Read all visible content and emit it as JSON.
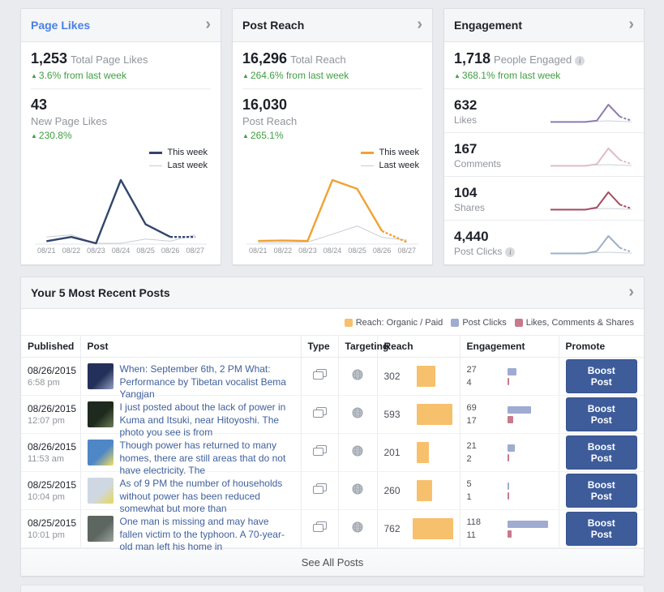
{
  "icons": {
    "chevron": "›",
    "up_arrow": "▲",
    "info": "i"
  },
  "cards": {
    "page_likes": {
      "title": "Page Likes",
      "stats": [
        {
          "value": "1,253",
          "label": "Total Page Likes",
          "delta": "3.6% from last week"
        },
        {
          "value": "43",
          "label": "New Page Likes",
          "delta": "230.8%"
        }
      ],
      "chart": {
        "type": "line",
        "x": [
          "08/21",
          "08/22",
          "08/23",
          "08/24",
          "08/25",
          "08/26",
          "08/27"
        ],
        "series": [
          {
            "name": "This week",
            "color": "#32456b",
            "values": [
              1,
              3,
              0,
              30,
              9,
              3,
              3
            ]
          },
          {
            "name": "Last week",
            "color": "#c7cdd6",
            "values": [
              3,
              4,
              0,
              0,
              2,
              1,
              4
            ]
          }
        ]
      }
    },
    "post_reach": {
      "title": "Post Reach",
      "stats": [
        {
          "value": "16,296",
          "label": "Total Reach",
          "delta": "264.6% from last week"
        },
        {
          "value": "16,030",
          "label": "Post Reach",
          "delta": "265.1%"
        }
      ],
      "chart": {
        "type": "line",
        "x": [
          "08/21",
          "08/22",
          "08/23",
          "08/24",
          "08/25",
          "08/26",
          "08/27"
        ],
        "series": [
          {
            "name": "This week",
            "color": "#f0a232",
            "values": [
              600,
              700,
              600,
              16030,
              13800,
              3100,
              300
            ]
          },
          {
            "name": "Last week",
            "color": "#c7cdd6",
            "values": [
              150,
              150,
              300,
              2300,
              4400,
              1500,
              800
            ]
          }
        ]
      }
    },
    "engagement": {
      "title": "Engagement",
      "stat": {
        "value": "1,718",
        "label": "People Engaged",
        "delta": "368.1% from last week"
      },
      "spark_last_week": [
        3,
        3,
        4,
        5,
        7,
        9,
        6,
        4
      ],
      "metrics": [
        {
          "value": "632",
          "label": "Likes",
          "color": "#8f7ab3",
          "spark": [
            3,
            3,
            3,
            3,
            10,
            100,
            32,
            10
          ],
          "info": false
        },
        {
          "value": "167",
          "label": "Comments",
          "color": "#debdc8",
          "spark": [
            2,
            2,
            2,
            2,
            12,
            100,
            35,
            12
          ],
          "info": false
        },
        {
          "value": "104",
          "label": "Shares",
          "color": "#a64a60",
          "spark": [
            2,
            2,
            2,
            2,
            14,
            100,
            30,
            8
          ],
          "info": false
        },
        {
          "value": "4,440",
          "label": "Post Clicks",
          "color": "#9db0c5",
          "spark": [
            2,
            2,
            2,
            2,
            15,
            100,
            33,
            10
          ],
          "info": true
        }
      ]
    }
  },
  "posts": {
    "title": "Your 5 Most Recent Posts",
    "legend": [
      {
        "label": "Reach: Organic / Paid",
        "color": "#f7c06c"
      },
      {
        "label": "Post Clicks",
        "color": "#9fabd0"
      },
      {
        "label": "Likes, Comments & Shares",
        "color": "#c9798c"
      }
    ],
    "columns": [
      "Published",
      "Post",
      "Type",
      "Targeting",
      "Reach",
      "Engagement",
      "Promote"
    ],
    "type_icon": "photo-stack-icon",
    "targeting_icon": "globe-icon",
    "boost_label": "Boost Post",
    "see_all_label": "See All Posts",
    "max_reach": 762,
    "max_engagement": 118,
    "rows": [
      {
        "date": "08/26/2015",
        "time": "6:58 pm",
        "text": "When: September 6th, 2 PM What: Performance by Tibetan vocalist Bema Yangjan",
        "reach": 302,
        "post_clicks": 27,
        "likes_comments_shares": 4,
        "thumb_colors": [
          "#23315a",
          "#97a0c0"
        ]
      },
      {
        "date": "08/26/2015",
        "time": "12:07 pm",
        "text": "I just posted about the lack of power in Kuma and Itsuki, near Hitoyoshi. The photo you see is from",
        "reach": 593,
        "post_clicks": 69,
        "likes_comments_shares": 17,
        "thumb_colors": [
          "#1d2a1d",
          "#6a7d58"
        ]
      },
      {
        "date": "08/26/2015",
        "time": "11:53 am",
        "text": "Though power has returned to many homes, there are still areas that do not have electricity. The",
        "reach": 201,
        "post_clicks": 21,
        "likes_comments_shares": 2,
        "thumb_colors": [
          "#4f86c6",
          "#f2e25c"
        ]
      },
      {
        "date": "08/25/2015",
        "time": "10:04 pm",
        "text": "As of 9 PM the number of households without power has been reduced somewhat but more than",
        "reach": 260,
        "post_clicks": 5,
        "likes_comments_shares": 1,
        "thumb_colors": [
          "#cfd8e2",
          "#e8d75a"
        ]
      },
      {
        "date": "08/25/2015",
        "time": "10:01 pm",
        "text": "One man is missing and may have fallen victim to the typhoon. A 70-year-old man left his home in",
        "reach": 762,
        "post_clicks": 118,
        "likes_comments_shares": 11,
        "thumb_colors": [
          "#5d6660",
          "#9aa39b"
        ]
      }
    ]
  }
}
